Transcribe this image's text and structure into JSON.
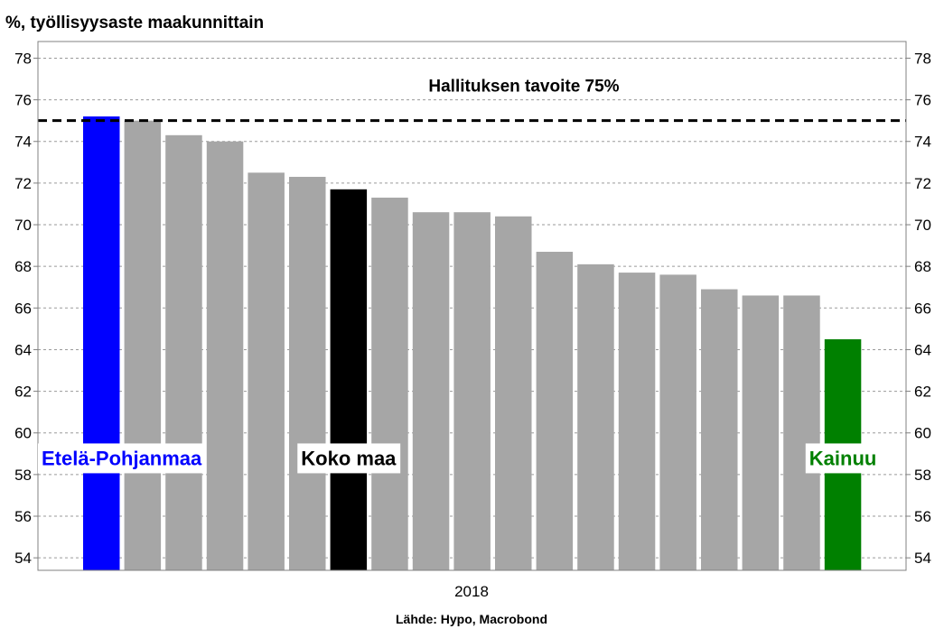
{
  "chart_data": {
    "type": "bar",
    "title": "%, työllisyysaste maakunnittain",
    "xlabel": "2018",
    "source": "Lähde: Hypo, Macrobond",
    "ylim": [
      53.4,
      78.8
    ],
    "yticks": [
      54,
      56,
      58,
      60,
      62,
      64,
      66,
      68,
      70,
      72,
      74,
      76,
      78
    ],
    "grid": true,
    "target": {
      "value": 75,
      "label": "Hallituksen tavoite 75%"
    },
    "values": [
      75.2,
      75.0,
      74.3,
      74.0,
      72.5,
      72.3,
      71.7,
      71.3,
      70.6,
      70.6,
      70.4,
      68.7,
      68.1,
      67.7,
      67.6,
      66.9,
      66.6,
      66.6,
      64.5
    ],
    "bar_colors": [
      "#0000ff",
      "#a6a6a6",
      "#a6a6a6",
      "#a6a6a6",
      "#a6a6a6",
      "#a6a6a6",
      "#000000",
      "#a6a6a6",
      "#a6a6a6",
      "#a6a6a6",
      "#a6a6a6",
      "#a6a6a6",
      "#a6a6a6",
      "#a6a6a6",
      "#a6a6a6",
      "#a6a6a6",
      "#a6a6a6",
      "#a6a6a6",
      "#008000"
    ],
    "annotations": [
      {
        "text": "Etelä-Pohjanmaa",
        "bar": 0,
        "color": "#0000ff"
      },
      {
        "text": "Koko maa",
        "bar": 6,
        "color": "#000000"
      },
      {
        "text": "Kainuu",
        "bar": 18,
        "color": "#008000"
      }
    ]
  }
}
